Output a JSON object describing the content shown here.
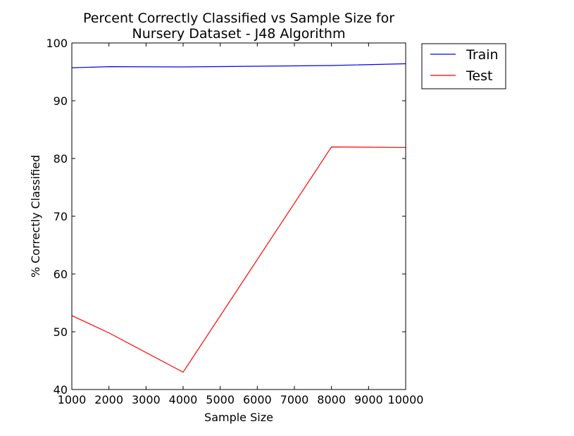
{
  "chart_data": {
    "type": "line",
    "title_line1": "Percent Correctly Classified vs Sample Size for",
    "title_line2": "Nursery Dataset - J48 Algorithm",
    "xlabel": "Sample Size",
    "ylabel": "% Correctly Classified",
    "xlim": [
      1000,
      10000
    ],
    "ylim": [
      40,
      100
    ],
    "x_ticks": [
      1000,
      2000,
      3000,
      4000,
      5000,
      6000,
      7000,
      8000,
      9000,
      10000
    ],
    "y_ticks": [
      40,
      50,
      60,
      70,
      80,
      90,
      100
    ],
    "grid": false,
    "legend_position": "outside-top-right",
    "series": [
      {
        "name": "Train",
        "color": "#0000ff",
        "x": [
          1000,
          2000,
          4000,
          8000,
          10000
        ],
        "y": [
          95.7,
          95.9,
          95.85,
          96.1,
          96.4
        ]
      },
      {
        "name": "Test",
        "color": "#ff0000",
        "x": [
          1000,
          2000,
          4000,
          8000,
          10000
        ],
        "y": [
          52.8,
          49.8,
          43.0,
          82.0,
          81.9
        ]
      }
    ]
  }
}
